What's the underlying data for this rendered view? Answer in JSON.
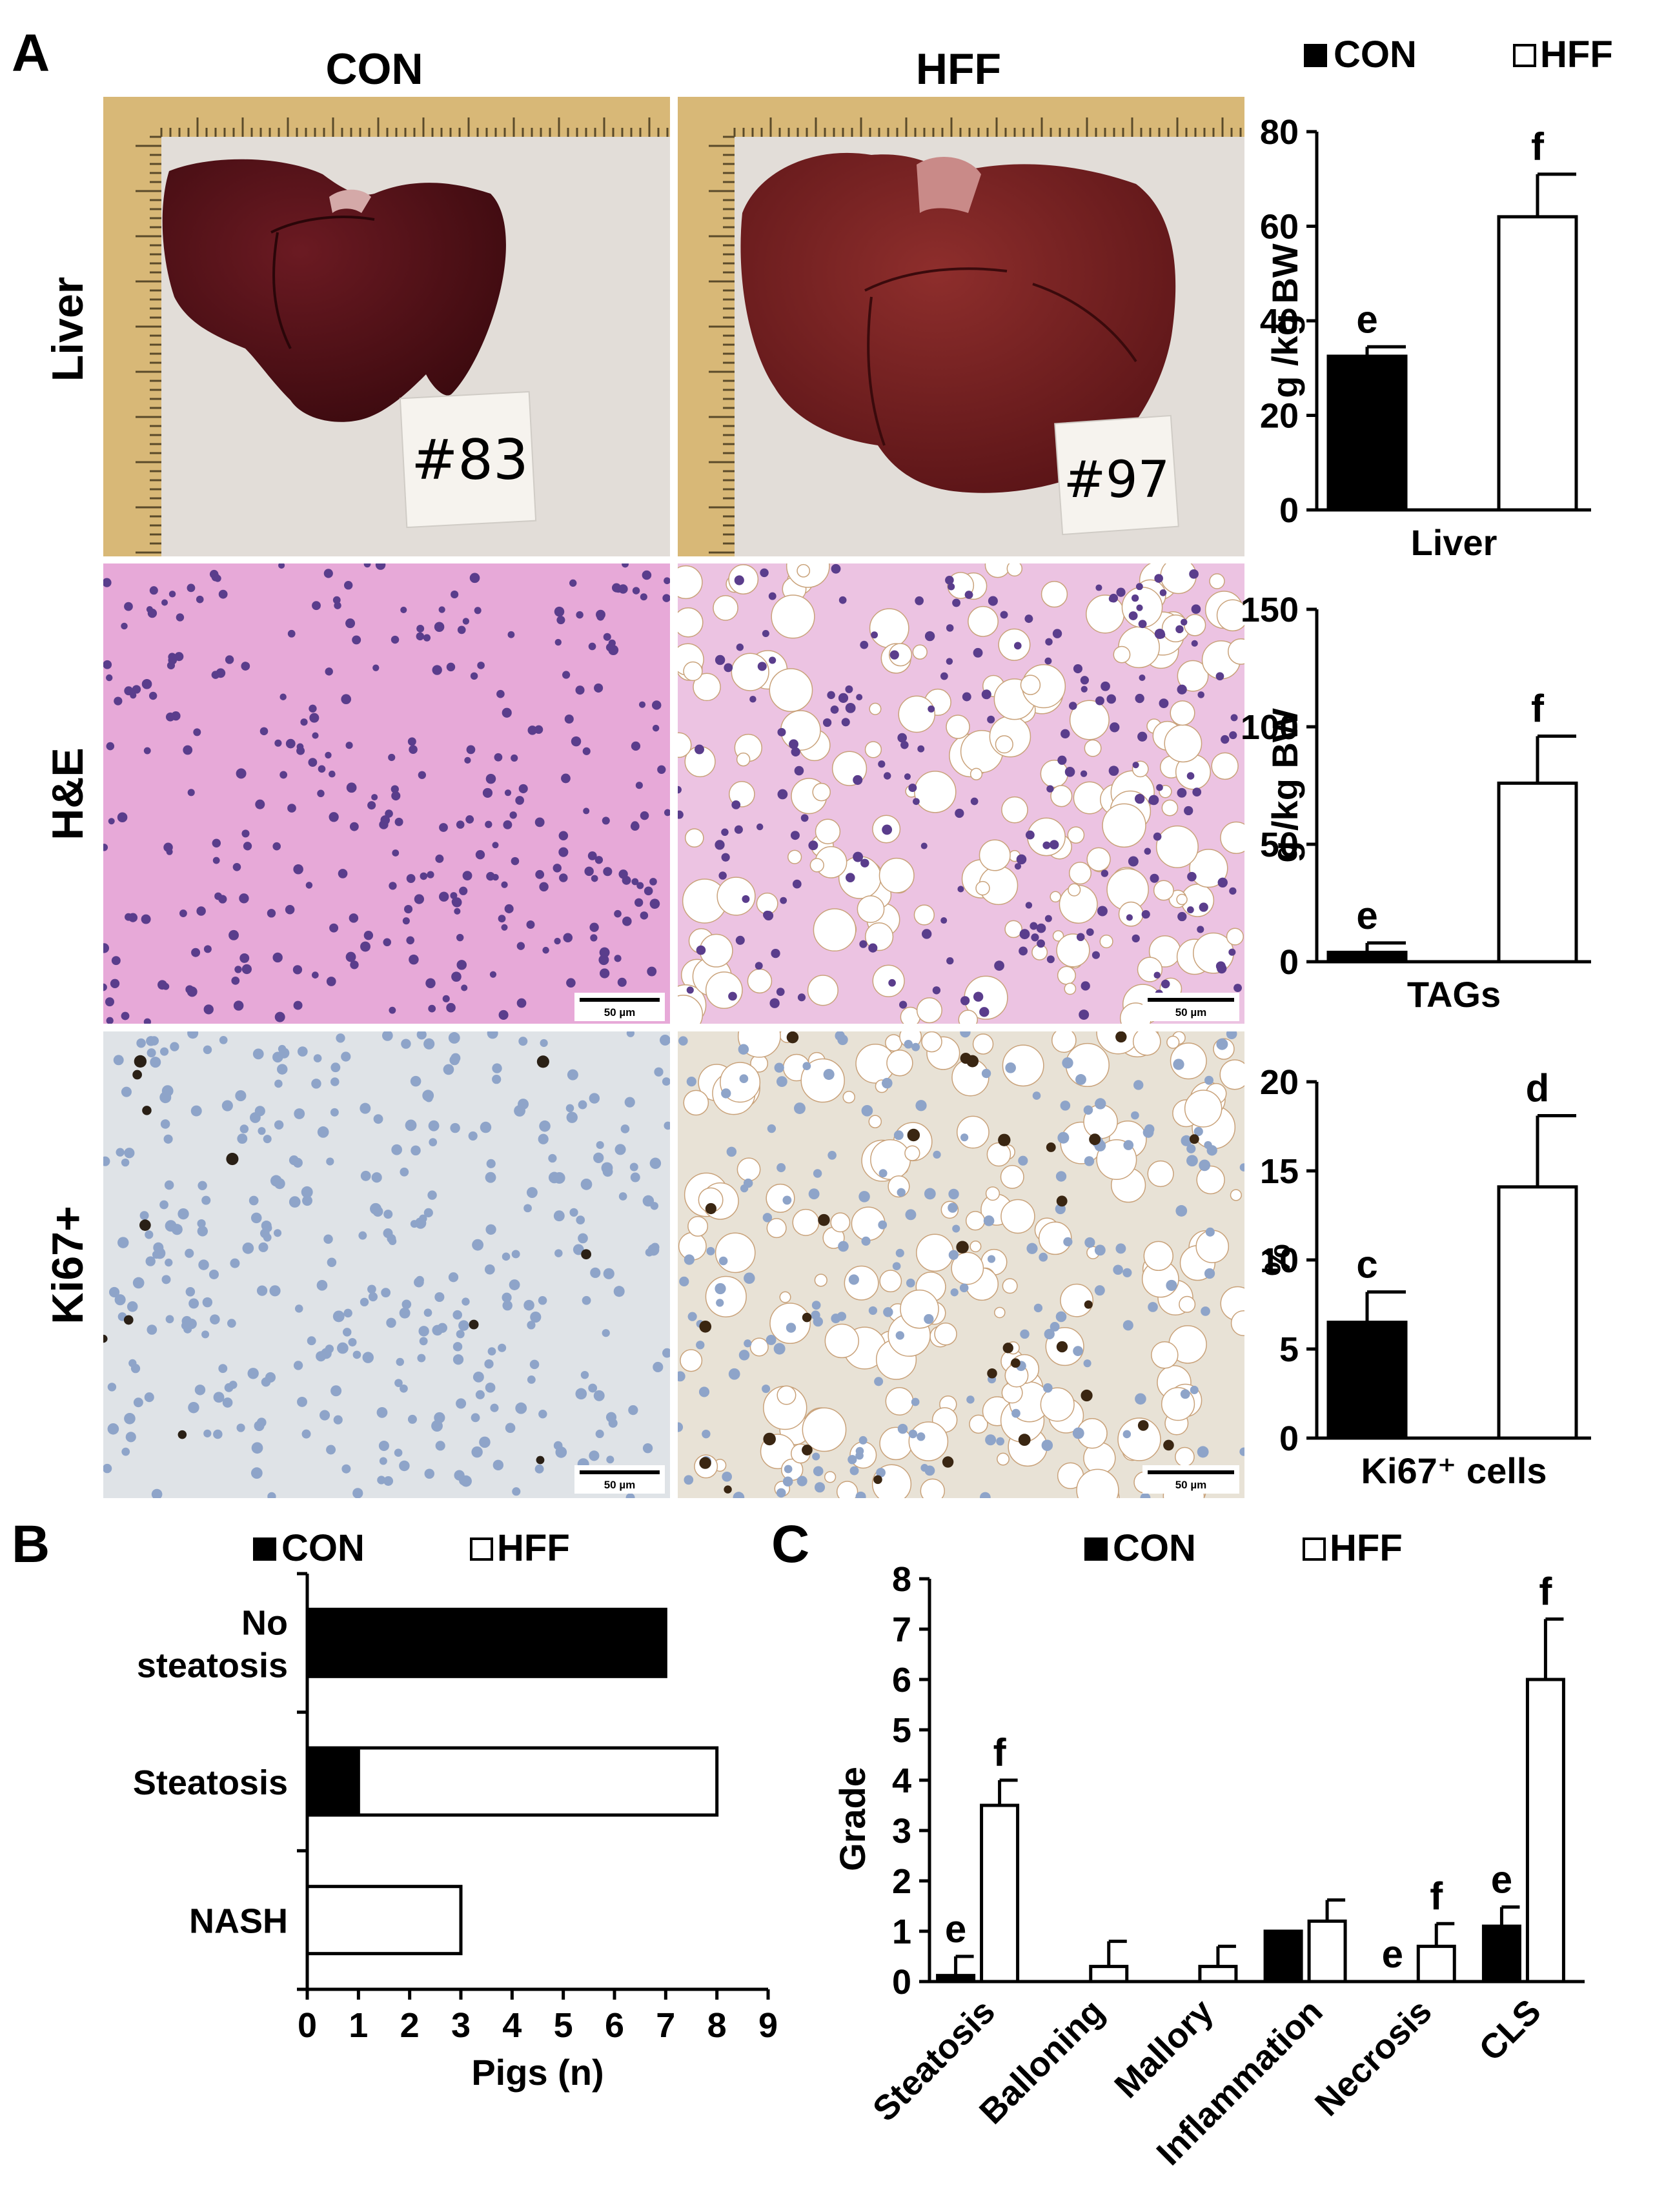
{
  "panel_labels": {
    "a": "A",
    "b": "B",
    "c": "C"
  },
  "column_titles": {
    "con": "CON",
    "hff": "HFF"
  },
  "row_labels": {
    "liver": "Liver",
    "he": "H&E",
    "ki67": "Ki67+"
  },
  "photo_tags": {
    "con": "#83",
    "hff": "#97"
  },
  "scale_bar_label": "50 µm",
  "legend": {
    "con": "CON",
    "hff": "HFF"
  },
  "colors": {
    "con": "#000000",
    "hff": "#ffffff",
    "liver_con": "#4a0d12",
    "liver_hff": "#6e1a1d",
    "he_bg": "#e7a9d8",
    "ki67_bg": "#dfe3e7",
    "ruler": "#d8b877",
    "photo_bg": "#e2ddd8"
  },
  "chart_data": [
    {
      "id": "liver-weight",
      "type": "bar",
      "categories": [
        "CON",
        "HFF"
      ],
      "values": [
        32.5,
        62
      ],
      "errors": [
        2,
        9
      ],
      "letters": [
        "e",
        "f"
      ],
      "xlabel": "Liver",
      "ylabel": "g /kg BW",
      "ylim": [
        0,
        80
      ],
      "yticks": [
        0,
        20,
        40,
        60,
        80
      ]
    },
    {
      "id": "tags",
      "type": "bar",
      "categories": [
        "CON",
        "HFF"
      ],
      "values": [
        4,
        76
      ],
      "errors": [
        4,
        20
      ],
      "letters": [
        "e",
        "f"
      ],
      "xlabel": "TAGs",
      "ylabel": "g /kg BW",
      "ylim": [
        0,
        150
      ],
      "yticks": [
        0,
        50,
        100,
        150
      ]
    },
    {
      "id": "ki67",
      "type": "bar",
      "categories": [
        "CON",
        "HFF"
      ],
      "values": [
        6.5,
        14.1
      ],
      "errors": [
        1.7,
        4
      ],
      "letters": [
        "c",
        "d"
      ],
      "xlabel": "Ki67⁺ cells",
      "ylabel": "%",
      "ylim": [
        0,
        20
      ],
      "yticks": [
        0,
        5,
        10,
        15,
        20
      ]
    },
    {
      "id": "steatosis-classification",
      "type": "bar",
      "orientation": "horizontal",
      "stacked": true,
      "categories": [
        "No\nsteatosis",
        "Steatosis",
        "NASH"
      ],
      "series": [
        {
          "name": "CON",
          "values": [
            7,
            1,
            0
          ]
        },
        {
          "name": "HFF",
          "values": [
            0,
            7,
            3
          ]
        }
      ],
      "xlabel": "Pigs (n)",
      "xlim": [
        0,
        9
      ],
      "xticks": [
        0,
        1,
        2,
        3,
        4,
        5,
        6,
        7,
        8,
        9
      ]
    },
    {
      "id": "histology-grade",
      "type": "bar",
      "categories": [
        "Steatosis",
        "Balloning",
        "Mallory",
        "Inflammation",
        "Necrosis",
        "CLS"
      ],
      "series": [
        {
          "name": "CON",
          "values": [
            0.12,
            0,
            0,
            1,
            0,
            1.1
          ],
          "errors": [
            0.38,
            0,
            0,
            0,
            0,
            0.38
          ]
        },
        {
          "name": "HFF",
          "values": [
            3.5,
            0.3,
            0.3,
            1.2,
            0.7,
            6
          ],
          "errors": [
            0.5,
            0.5,
            0.4,
            0.42,
            0.45,
            1.2
          ]
        }
      ],
      "letters": [
        {
          "category": 0,
          "series": 0,
          "text": "e"
        },
        {
          "category": 0,
          "series": 1,
          "text": "f"
        },
        {
          "category": 4,
          "series": 0,
          "text": "e"
        },
        {
          "category": 4,
          "series": 1,
          "text": "f"
        },
        {
          "category": 5,
          "series": 0,
          "text": "e"
        },
        {
          "category": 5,
          "series": 1,
          "text": "f"
        }
      ],
      "ylabel": "Grade",
      "ylim": [
        0,
        8
      ],
      "yticks": [
        0,
        1,
        2,
        3,
        4,
        5,
        6,
        7,
        8
      ]
    }
  ]
}
